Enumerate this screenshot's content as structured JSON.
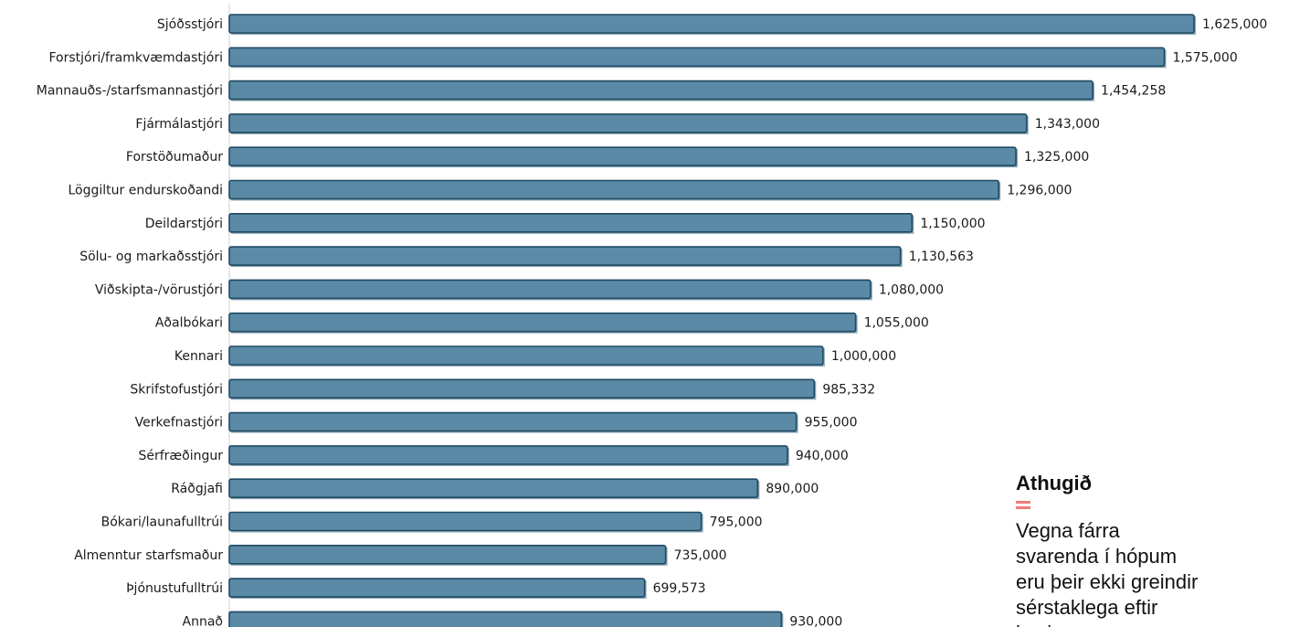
{
  "chart_data": {
    "type": "bar",
    "orientation": "horizontal",
    "categories": [
      "Sjóðsstjóri",
      "Forstjóri/framkvæmdastjóri",
      "Mannauðs-/starfsmannastjóri",
      "Fjármálastjóri",
      "Forstöðumaður",
      "Löggiltur endurskoðandi",
      "Deildarstjóri",
      "Sölu- og markaðsstjóri",
      "Viðskipta-/vörustjóri",
      "Aðalbókari",
      "Kennari",
      "Skrifstofustjóri",
      "Verkefnastjóri",
      "Sérfræðingur",
      "Ráðgjafi",
      "Bókari/launafulltrúi",
      "Almenntur starfsmaður",
      "Þjónustufulltrúi",
      "Annað"
    ],
    "values": [
      1625000,
      1575000,
      1454258,
      1343000,
      1325000,
      1296000,
      1150000,
      1130563,
      1080000,
      1055000,
      1000000,
      985332,
      955000,
      940000,
      890000,
      795000,
      735000,
      699573,
      930000
    ],
    "value_labels": [
      "1,625,000",
      "1,575,000",
      "1,454,258",
      "1,343,000",
      "1,325,000",
      "1,296,000",
      "1,150,000",
      "1,130,563",
      "1,080,000",
      "1,055,000",
      "1,000,000",
      "985,332",
      "955,000",
      "940,000",
      "890,000",
      "795,000",
      "735,000",
      "699,573",
      "930,000"
    ],
    "xlim": [
      0,
      1625000
    ],
    "grid": false,
    "bar_color": "#5b8aa6",
    "bar_border_color": "#1f4a63"
  },
  "note": {
    "title": "Athugið",
    "body": "Vegna fárra svarenda í hópum eru þeir ekki greindir sérstaklega eftir kyni",
    "accent_color": "#f07a7a"
  }
}
